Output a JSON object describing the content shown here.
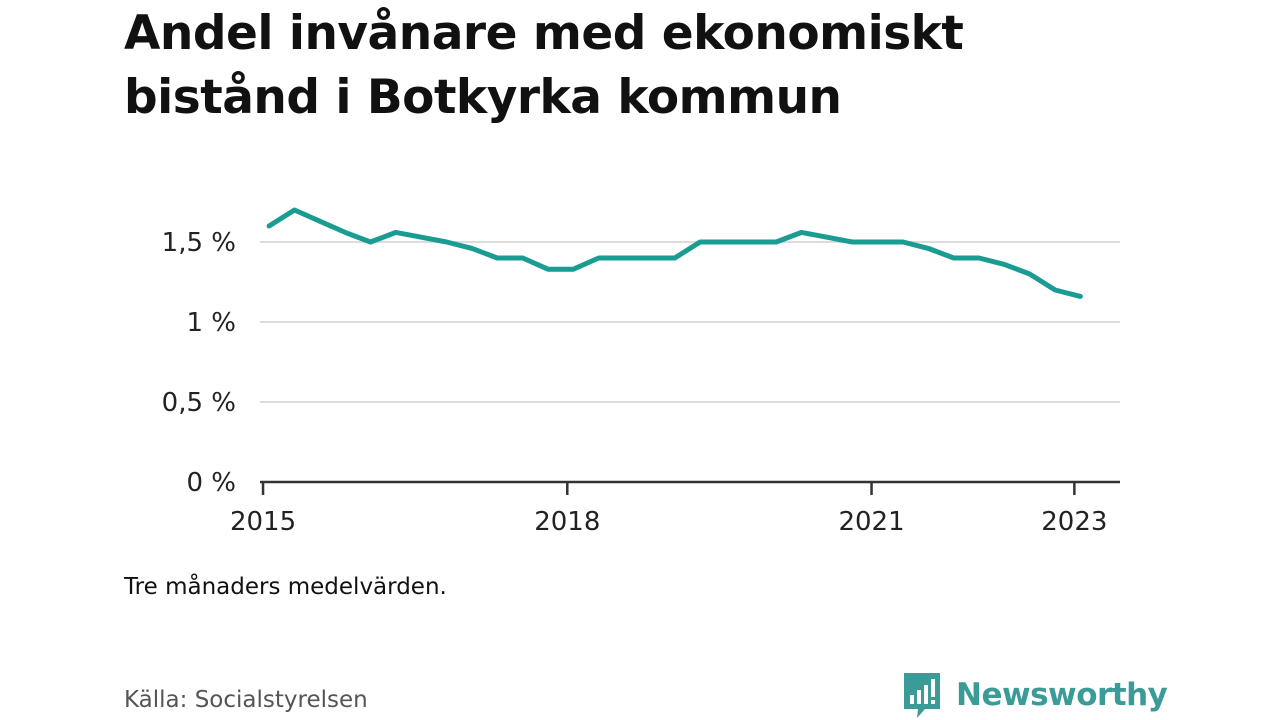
{
  "title": "Andel invånare med ekonomiskt bistånd i Botkyrka kommun",
  "note": "Tre månaders medelvärden.",
  "source": "Källa: Socialstyrelsen",
  "brand": {
    "name": "Newsworthy",
    "icon": "bar-chart-speech-bubble-icon",
    "color": "#3a9b97"
  },
  "chart_data": {
    "type": "line",
    "title": "Andel invånare med ekonomiskt bistånd i Botkyrka kommun",
    "xlabel": "",
    "ylabel": "",
    "xlim": [
      2014.97,
      2023.45
    ],
    "ylim": [
      0,
      1.5
    ],
    "x_ticks": [
      {
        "value": 2015,
        "label": "2015"
      },
      {
        "value": 2018,
        "label": "2018"
      },
      {
        "value": 2021,
        "label": "2021"
      },
      {
        "value": 2023,
        "label": "2023"
      }
    ],
    "y_ticks": [
      {
        "value": 0,
        "label": "0 %"
      },
      {
        "value": 0.5,
        "label": "0,5 %"
      },
      {
        "value": 1,
        "label": "1 %"
      },
      {
        "value": 1.5,
        "label": "1,5 %"
      }
    ],
    "grid": true,
    "line_color": "#1a9c93",
    "series": [
      {
        "x": [
          2015.06,
          2015.31,
          2015.56,
          2015.81,
          2016.06,
          2016.31,
          2016.56,
          2016.81,
          2017.06,
          2017.31,
          2017.56,
          2017.81,
          2018.06,
          2018.31,
          2018.56,
          2018.81,
          2019.06,
          2019.31,
          2019.56,
          2019.81,
          2020.06,
          2020.31,
          2020.56,
          2020.81,
          2021.06,
          2021.31,
          2021.56,
          2021.81,
          2022.06,
          2022.31,
          2022.56,
          2022.81,
          2023.06
        ],
        "values": [
          1.6,
          1.7,
          1.63,
          1.56,
          1.5,
          1.56,
          1.53,
          1.5,
          1.46,
          1.4,
          1.4,
          1.33,
          1.33,
          1.4,
          1.4,
          1.4,
          1.4,
          1.5,
          1.5,
          1.5,
          1.5,
          1.56,
          1.53,
          1.5,
          1.5,
          1.5,
          1.46,
          1.4,
          1.4,
          1.36,
          1.3,
          1.2,
          1.16
        ]
      }
    ]
  }
}
